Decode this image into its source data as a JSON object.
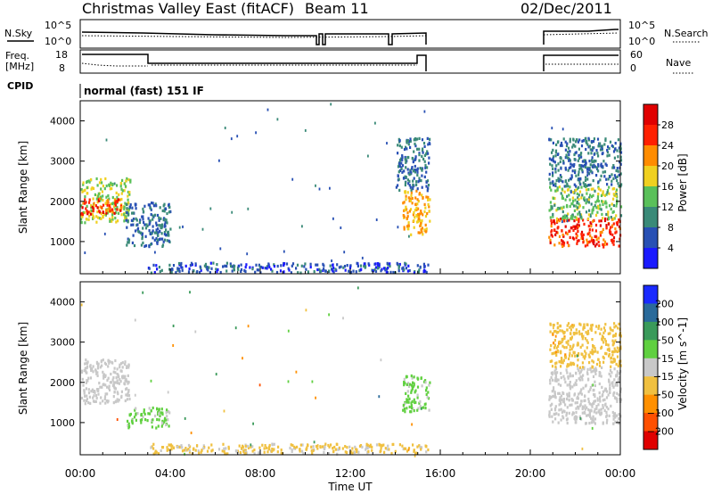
{
  "header": {
    "title": "Christmas Valley East (fitACF)",
    "beam": "Beam 11",
    "date": "02/Dec/2011"
  },
  "panels": {
    "noise": {
      "left_label": "N.Sky",
      "right_label": "N.Search",
      "y_ticks_left": [
        "10^5",
        "10^0"
      ],
      "y_ticks_right": [
        "10^5",
        "10^0"
      ]
    },
    "freq": {
      "left_label_1": "Freq.",
      "left_label_2": "[MHz]",
      "right_label": "Nave",
      "y_ticks_left": [
        "18",
        "8"
      ],
      "y_ticks_right": [
        "60",
        "0"
      ]
    },
    "cpid": {
      "label": "CPID",
      "value": "normal (fast) 151 IF"
    }
  },
  "chart_data": [
    {
      "type": "heatmap",
      "name": "power",
      "ylabel": "Slant Range [km]",
      "xlabel": "Time UT",
      "y_ticks": [
        1000,
        2000,
        3000,
        4000
      ],
      "ylim": [
        200,
        4500
      ],
      "colorbar": {
        "label": "Power [dB]",
        "ticks": [
          4,
          8,
          12,
          16,
          20,
          24,
          28
        ],
        "range": [
          0,
          32
        ],
        "colors": [
          "#1a1aff",
          "#2850b4",
          "#3a8a78",
          "#5ac05a",
          "#f0d020",
          "#ff8c00",
          "#ff2000",
          "#e00000"
        ]
      },
      "regions": [
        {
          "t0": 0.0,
          "t1": 2.2,
          "r0": 1500,
          "r1": 2600,
          "level": 16
        },
        {
          "t0": 0.0,
          "t1": 1.8,
          "r0": 1700,
          "r1": 2100,
          "level": 26
        },
        {
          "t0": 2.0,
          "t1": 4.0,
          "r0": 900,
          "r1": 2000,
          "level": 8
        },
        {
          "t0": 3.0,
          "t1": 15.5,
          "r0": 250,
          "r1": 500,
          "level": 6
        },
        {
          "t0": 14.3,
          "t1": 15.5,
          "r0": 1200,
          "r1": 2300,
          "level": 20
        },
        {
          "t0": 14.0,
          "t1": 15.5,
          "r0": 2300,
          "r1": 3600,
          "level": 8
        },
        {
          "t0": 20.8,
          "t1": 24.0,
          "r0": 900,
          "r1": 1600,
          "level": 26
        },
        {
          "t0": 20.8,
          "t1": 24.0,
          "r0": 1600,
          "r1": 2400,
          "level": 14
        },
        {
          "t0": 20.8,
          "t1": 24.0,
          "r0": 2400,
          "r1": 3600,
          "level": 8
        }
      ]
    },
    {
      "type": "heatmap",
      "name": "velocity",
      "ylabel": "Slant Range [km]",
      "xlabel": "Time UT",
      "y_ticks": [
        1000,
        2000,
        3000,
        4000
      ],
      "ylim": [
        200,
        4500
      ],
      "colorbar": {
        "label": "Velocity [m s^-1]",
        "ticks": [
          200,
          100,
          50,
          15,
          -15,
          -50,
          -100,
          -200
        ],
        "range": [
          -250,
          250
        ],
        "colors": [
          "#1a2aff",
          "#2a6a9a",
          "#3a9a5a",
          "#60d040",
          "#c8c8c8",
          "#f0c040",
          "#ff9000",
          "#ff5000",
          "#e00000"
        ]
      },
      "regions": [
        {
          "t0": 0.0,
          "t1": 2.2,
          "r0": 1500,
          "r1": 2600,
          "level": 0
        },
        {
          "t0": 2.0,
          "t1": 4.0,
          "r0": 900,
          "r1": 1400,
          "level": 40
        },
        {
          "t0": 3.0,
          "t1": 15.5,
          "r0": 250,
          "r1": 500,
          "level": -40
        },
        {
          "t0": 14.3,
          "t1": 15.5,
          "r0": 1300,
          "r1": 2200,
          "level": 40
        },
        {
          "t0": 20.8,
          "t1": 24.0,
          "r0": 1000,
          "r1": 2400,
          "level": 0
        },
        {
          "t0": 20.8,
          "t1": 24.0,
          "r0": 2400,
          "r1": 3500,
          "level": -60
        }
      ]
    }
  ],
  "x_axis": {
    "label": "Time UT",
    "ticks": [
      "00:00",
      "04:00",
      "08:00",
      "12:00",
      "16:00",
      "20:00",
      "00:00"
    ],
    "range_hours": [
      0,
      24
    ]
  },
  "data_gap": {
    "start_hours": 15.5,
    "end_hours": 20.7
  }
}
